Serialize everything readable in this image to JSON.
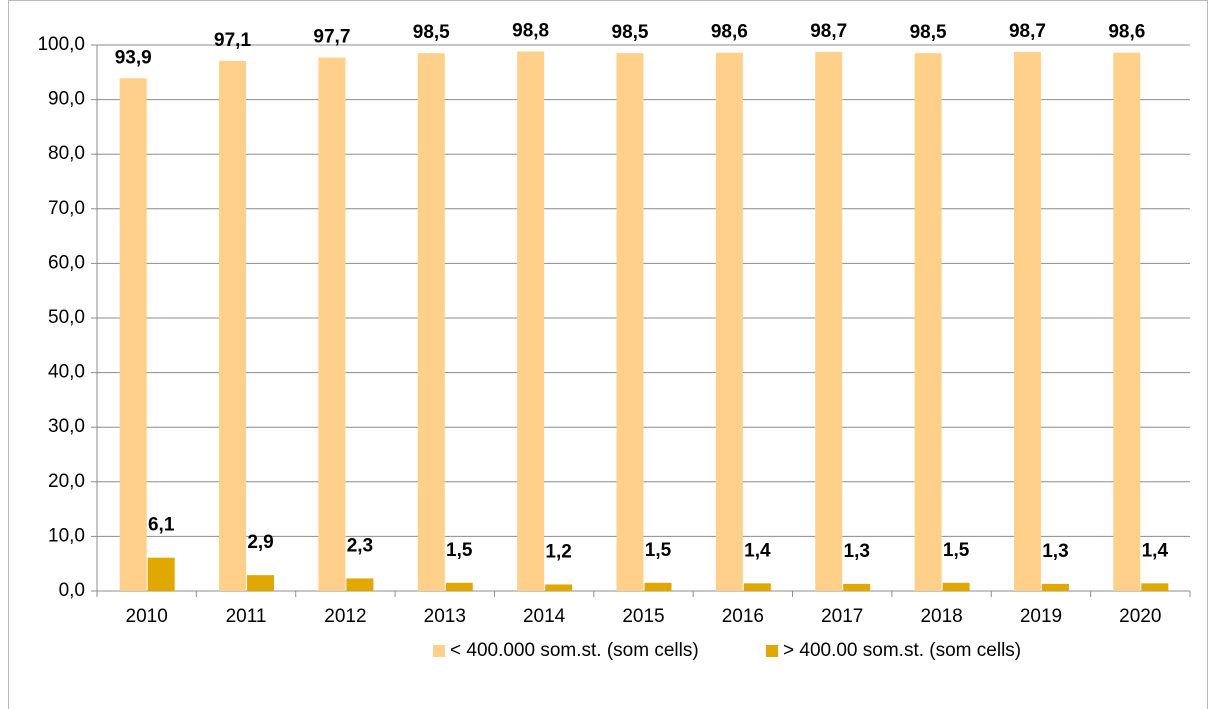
{
  "chart_data": {
    "type": "bar",
    "categories": [
      "2010",
      "2011",
      "2012",
      "2013",
      "2014",
      "2015",
      "2016",
      "2017",
      "2018",
      "2019",
      "2020"
    ],
    "series": [
      {
        "name": "< 400.000 som.st. (som cells)",
        "color": "#FFD08A",
        "values": [
          93.9,
          97.1,
          97.7,
          98.5,
          98.8,
          98.5,
          98.6,
          98.7,
          98.5,
          98.7,
          98.6
        ],
        "value_labels": [
          "93,9",
          "97,1",
          "97,7",
          "98,5",
          "98,8",
          "98,5",
          "98,6",
          "98,7",
          "98,5",
          "98,7",
          "98,6"
        ]
      },
      {
        "name": "> 400.00 som.st. (som cells)",
        "color": "#E0A800",
        "values": [
          6.1,
          2.9,
          2.3,
          1.5,
          1.2,
          1.5,
          1.4,
          1.3,
          1.5,
          1.3,
          1.4
        ],
        "value_labels": [
          "6,1",
          "2,9",
          "2,3",
          "1,5",
          "1,2",
          "1,5",
          "1,4",
          "1,3",
          "1,5",
          "1,3",
          "1,4"
        ]
      }
    ],
    "ylim": [
      0,
      100
    ],
    "yticks": [
      {
        "value": 0,
        "label": "0,0"
      },
      {
        "value": 10,
        "label": "10,0"
      },
      {
        "value": 20,
        "label": "20,0"
      },
      {
        "value": 30,
        "label": "30,0"
      },
      {
        "value": 40,
        "label": "40,0"
      },
      {
        "value": 50,
        "label": "50,0"
      },
      {
        "value": 60,
        "label": "60,0"
      },
      {
        "value": 70,
        "label": "70,0"
      },
      {
        "value": 80,
        "label": "80,0"
      },
      {
        "value": 90,
        "label": "90,0"
      },
      {
        "value": 100,
        "label": "100,0"
      }
    ],
    "grid": true,
    "legend": "bottom"
  }
}
